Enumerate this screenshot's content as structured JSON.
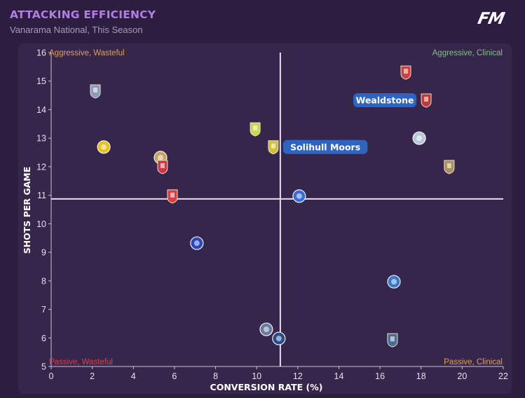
{
  "header": {
    "title": "ATTACKING EFFICIENCY",
    "subtitle": "Vanarama National, This Season",
    "logo": "FM"
  },
  "colors": {
    "title": "#b27ee6",
    "quad_aggressive_wasteful": "#e0a050",
    "quad_aggressive_clinical": "#7cc47c",
    "quad_passive_wasteful": "#d9404a",
    "quad_passive_clinical": "#e0a050",
    "callout_bg": "#2f63c0",
    "callout_text_wealdstone": "#ffffff",
    "callout_text_solihull": "#f2e24a"
  },
  "chart_data": {
    "type": "scatter",
    "title": "ATTACKING EFFICIENCY",
    "subtitle": "Vanarama National, This Season",
    "xlabel": "CONVERSION RATE (%)",
    "ylabel": "SHOTS PER GAME",
    "xlim": [
      0,
      22
    ],
    "ylim": [
      5,
      16
    ],
    "xticks": [
      "0",
      "2",
      "4",
      "6",
      "8",
      "10",
      "12",
      "14",
      "16",
      "18",
      "20",
      "22"
    ],
    "yticks": [
      "5",
      "6",
      "7",
      "8",
      "9",
      "10",
      "11",
      "12",
      "13",
      "14",
      "15",
      "16"
    ],
    "grid": false,
    "reference_lines": {
      "x_mean": 11.15,
      "y_mean": 10.87
    },
    "quadrant_labels": {
      "top_left": "Aggressive, Wasteful",
      "top_right": "Aggressive, Clinical",
      "bottom_left": "Passive, Wasteful",
      "bottom_right": "Passive, Clinical"
    },
    "points": [
      {
        "x": 2.15,
        "y": 14.65,
        "badge": "crest-blue-red",
        "color": "#8a9ab8"
      },
      {
        "x": 2.56,
        "y": 12.69,
        "badge": "round-yellow-black",
        "color": "#e8c020"
      },
      {
        "x": 5.32,
        "y": 12.32,
        "badge": "round-gold-white",
        "color": "#c8a060"
      },
      {
        "x": 5.42,
        "y": 12.0,
        "badge": "shield-red-blue",
        "color": "#c83a4a"
      },
      {
        "x": 5.9,
        "y": 10.97,
        "badge": "shield-red-white",
        "color": "#d84040"
      },
      {
        "x": 7.09,
        "y": 9.32,
        "badge": "round-blue-plane",
        "color": "#2a48b8"
      },
      {
        "x": 9.93,
        "y": 13.32,
        "badge": "shield-green-yellow",
        "color": "#c8d850"
      },
      {
        "x": 10.81,
        "y": 12.69,
        "badge": "shield-yellow-green",
        "color": "#d0c040",
        "label": "Solihull Moors",
        "highlight": true
      },
      {
        "x": 12.07,
        "y": 10.97,
        "badge": "round-blue",
        "color": "#3a6ad8"
      },
      {
        "x": 10.47,
        "y": 6.3,
        "badge": "round-blue-gold",
        "color": "#6a7aa0"
      },
      {
        "x": 11.08,
        "y": 5.98,
        "badge": "round-navy-white",
        "color": "#2a4a8a"
      },
      {
        "x": 17.26,
        "y": 15.31,
        "badge": "shield-green-red",
        "color": "#d04040"
      },
      {
        "x": 18.25,
        "y": 14.33,
        "badge": "shield-red-green",
        "color": "#c03838",
        "label": "Wealdstone",
        "highlight": true
      },
      {
        "x": 17.91,
        "y": 13.0,
        "badge": "round-white-blue",
        "color": "#b8c8d8"
      },
      {
        "x": 19.37,
        "y": 12.0,
        "badge": "shield-gold-black",
        "color": "#a89060"
      },
      {
        "x": 16.68,
        "y": 7.97,
        "badge": "round-blue-white",
        "color": "#3a78c8"
      },
      {
        "x": 16.61,
        "y": 5.93,
        "badge": "shield-navy-gold",
        "color": "#4a6a98"
      }
    ]
  }
}
